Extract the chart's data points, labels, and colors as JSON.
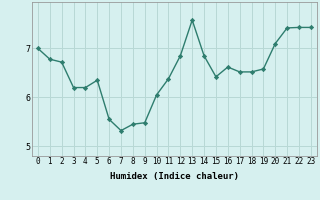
{
  "x": [
    0,
    1,
    2,
    3,
    4,
    5,
    6,
    7,
    8,
    9,
    10,
    11,
    12,
    13,
    14,
    15,
    16,
    17,
    18,
    19,
    20,
    21,
    22,
    23
  ],
  "y": [
    7.0,
    6.78,
    6.72,
    6.2,
    6.2,
    6.35,
    5.55,
    5.32,
    5.45,
    5.48,
    6.05,
    6.38,
    6.85,
    7.58,
    6.85,
    6.42,
    6.62,
    6.52,
    6.52,
    6.58,
    7.1,
    7.42,
    7.43,
    7.43
  ],
  "xlabel": "Humidex (Indice chaleur)",
  "ylim": [
    4.8,
    7.95
  ],
  "yticks": [
    5,
    6,
    7
  ],
  "xticks": [
    0,
    1,
    2,
    3,
    4,
    5,
    6,
    7,
    8,
    9,
    10,
    11,
    12,
    13,
    14,
    15,
    16,
    17,
    18,
    19,
    20,
    21,
    22,
    23
  ],
  "line_color": "#2e7d6e",
  "bg_color": "#d6f0ef",
  "grid_color": "#b8d8d5",
  "marker": "D",
  "marker_size": 2.2,
  "tick_fontsize": 5.5,
  "xlabel_fontsize": 6.5
}
